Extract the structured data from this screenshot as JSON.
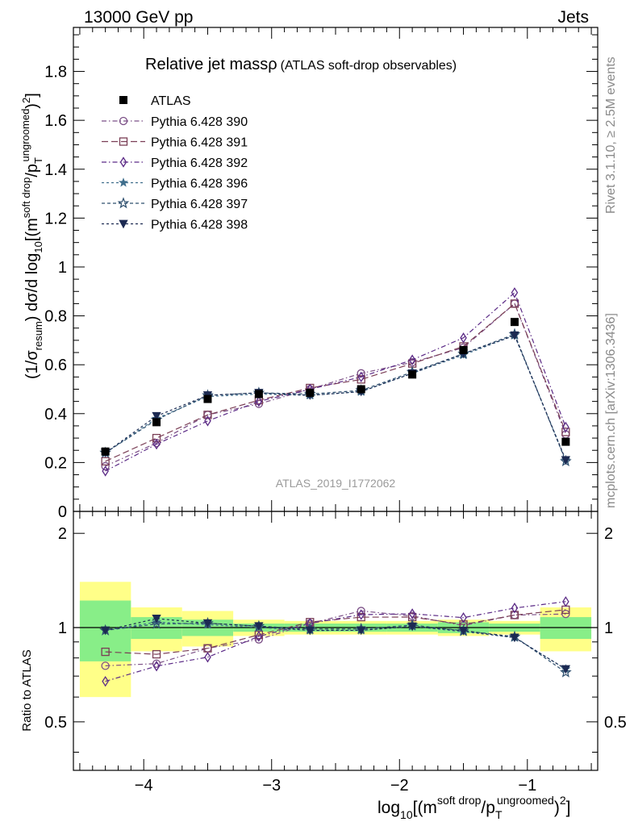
{
  "header": {
    "left": "13000 GeV pp",
    "right": "Jets"
  },
  "side_labels": {
    "rivet": "Rivet 3.1.10, ≥ 2.5M events",
    "mcplots": "mcplots.cern.ch [arXiv:1306.3436]"
  },
  "chart_data": {
    "type": "line",
    "title_main": "Relative jet massρ",
    "title_sub": "(ATLAS soft-drop observables)",
    "watermark": "ATLAS_2019_I1772062",
    "xlabel": {
      "prefix": "log",
      "sub": "10",
      "mid": "[(m",
      "sup1": "soft drop",
      "mid2": "/p",
      "sub2": "T",
      "sup2": "ungroomed",
      "tail": ")",
      "sup3": "2",
      "end": "]"
    },
    "ylabel": {
      "p1": "(1/σ",
      "sub1": "resum",
      "p2": ") dσ/d log",
      "sub2": "10",
      "p3": "[(m",
      "sup1": "soft drop",
      "p4": "/p",
      "sub3": "T",
      "sup2": "ungroomed",
      "p5": ")",
      "sup3": "2",
      "p6": "]"
    },
    "ratio_ylabel": "Ratio to ATLAS",
    "xlim": [
      -4.55,
      -0.45
    ],
    "ylim": [
      0,
      1.98
    ],
    "ratio_ylim": [
      0.35,
      2.35
    ],
    "x_ticks": [
      {
        "v": -4,
        "label": "−4"
      },
      {
        "v": -3,
        "label": "−3"
      },
      {
        "v": -2,
        "label": "−2"
      },
      {
        "v": -1,
        "label": "−1"
      }
    ],
    "y_ticks": [
      {
        "v": 0,
        "label": "0"
      },
      {
        "v": 0.2,
        "label": "0.2"
      },
      {
        "v": 0.4,
        "label": "0.4"
      },
      {
        "v": 0.6,
        "label": "0.6"
      },
      {
        "v": 0.8,
        "label": "0.8"
      },
      {
        "v": 1.0,
        "label": "1"
      },
      {
        "v": 1.2,
        "label": "1.2"
      },
      {
        "v": 1.4,
        "label": "1.4"
      },
      {
        "v": 1.6,
        "label": "1.6"
      },
      {
        "v": 1.8,
        "label": "1.8"
      }
    ],
    "ratio_ticks": [
      {
        "v": 0.5,
        "label": "0.5"
      },
      {
        "v": 1,
        "label": "1"
      },
      {
        "v": 2,
        "label": "2"
      }
    ],
    "x": [
      -4.3,
      -3.9,
      -3.5,
      -3.1,
      -2.7,
      -2.3,
      -1.9,
      -1.5,
      -1.1,
      -0.7
    ],
    "bins": [
      [
        -4.5,
        -4.1
      ],
      [
        -4.1,
        -3.7
      ],
      [
        -3.7,
        -3.3
      ],
      [
        -3.3,
        -2.9
      ],
      [
        -2.9,
        -2.5
      ],
      [
        -2.5,
        -2.1
      ],
      [
        -2.1,
        -1.7
      ],
      [
        -1.7,
        -1.3
      ],
      [
        -1.3,
        -0.9
      ],
      [
        -0.9,
        -0.5
      ]
    ],
    "atlas": {
      "name": "ATLAS",
      "values": [
        0.245,
        0.365,
        0.46,
        0.48,
        0.485,
        0.5,
        0.56,
        0.66,
        0.775,
        0.285
      ],
      "band_inner": [
        0.22,
        0.08,
        0.06,
        0.03,
        0.03,
        0.03,
        0.03,
        0.04,
        0.03,
        0.08
      ],
      "band_outer": [
        0.4,
        0.16,
        0.13,
        0.06,
        0.05,
        0.05,
        0.05,
        0.06,
        0.05,
        0.16
      ],
      "color": "#000000"
    },
    "series": [
      {
        "name": "Pythia 6.428 390",
        "marker": "circle",
        "dash": "6,3,1.5,3",
        "color": "#7b4f86",
        "values": [
          0.185,
          0.28,
          0.395,
          0.44,
          0.5,
          0.565,
          0.61,
          0.67,
          0.85,
          0.315
        ]
      },
      {
        "name": "Pythia 6.428 391",
        "marker": "square",
        "dash": "8,4",
        "color": "#7a3e55",
        "values": [
          0.205,
          0.3,
          0.395,
          0.455,
          0.505,
          0.54,
          0.605,
          0.675,
          0.85,
          0.325
        ]
      },
      {
        "name": "Pythia 6.428 392",
        "marker": "diamond",
        "dash": "6,3,1.5,3",
        "color": "#5b2a86",
        "values": [
          0.165,
          0.275,
          0.37,
          0.45,
          0.5,
          0.55,
          0.62,
          0.71,
          0.895,
          0.345
        ]
      },
      {
        "name": "Pythia 6.428 396",
        "marker": "star_filled",
        "dash": "3,3",
        "color": "#3f6e8c",
        "values": [
          0.24,
          0.38,
          0.47,
          0.48,
          0.475,
          0.49,
          0.565,
          0.64,
          0.72,
          0.21
        ]
      },
      {
        "name": "Pythia 6.428 397",
        "marker": "star_open",
        "dash": "4,3",
        "color": "#2e4f6e",
        "values": [
          0.24,
          0.375,
          0.475,
          0.485,
          0.48,
          0.495,
          0.57,
          0.645,
          0.725,
          0.205
        ]
      },
      {
        "name": "Pythia 6.428 398",
        "marker": "tri_down",
        "dash": "3,3",
        "color": "#1c2a52",
        "values": [
          0.24,
          0.39,
          0.475,
          0.485,
          0.475,
          0.49,
          0.565,
          0.645,
          0.72,
          0.21
        ]
      }
    ],
    "colors": {
      "band_inner": "#88ee88",
      "band_outer": "#ffff88"
    }
  }
}
